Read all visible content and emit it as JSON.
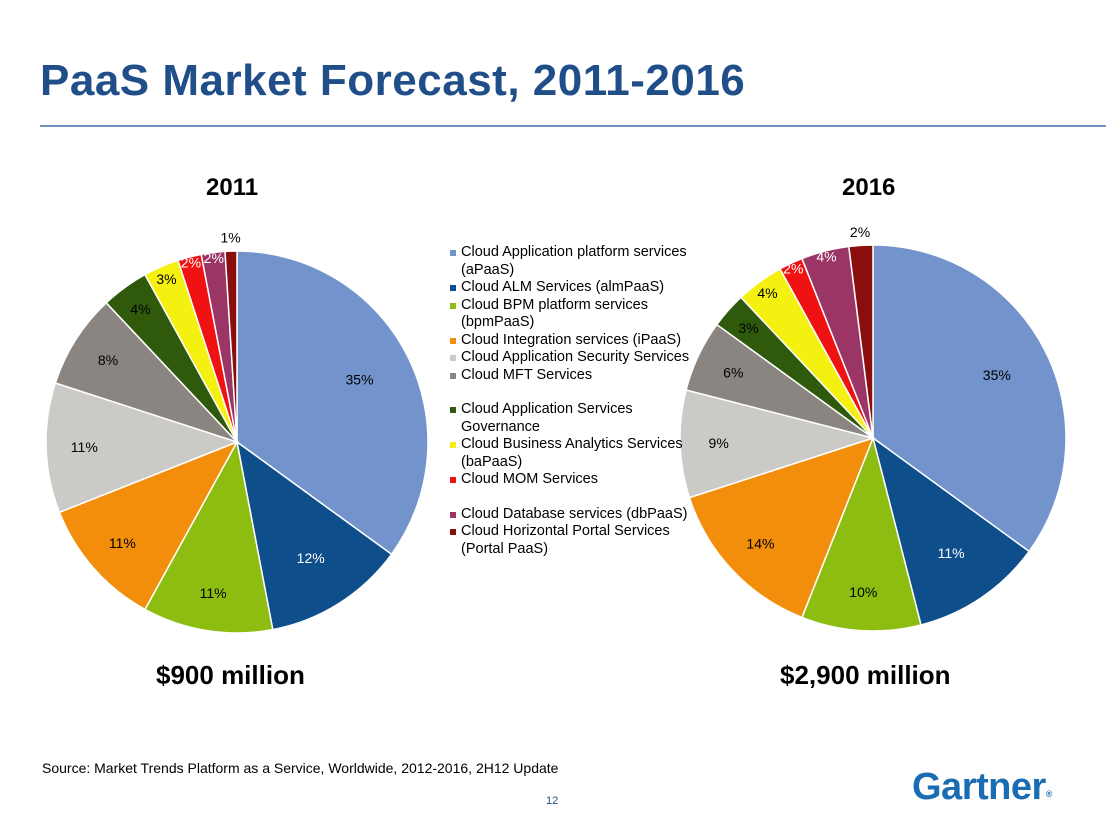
{
  "title": "PaaS Market Forecast, 2011-2016",
  "source": "Source: Market Trends Platform as a Service, Worldwide, 2012-2016, 2H12 Update",
  "page_number": "12",
  "logo": "Gartner",
  "legend": [
    {
      "label": "Cloud Application platform services (aPaaS)",
      "color": "#7293cb"
    },
    {
      "label": "Cloud ALM Services (almPaaS)",
      "color": "#0e4e8b"
    },
    {
      "label": "Cloud BPM platform services (bpmPaaS)",
      "color": "#8cbd10"
    },
    {
      "label": "Cloud Integration services (iPaaS)",
      "color": "#f28e0c"
    },
    {
      "label": "Cloud Application Security Services",
      "color": "#cccac7"
    },
    {
      "label": "Cloud MFT Services",
      "color": "#8a8580"
    },
    {
      "label": "Cloud Application Services Governance",
      "color": "#2f5a0c"
    },
    {
      "label": "Cloud Business Analytics Services (baPaaS)",
      "color": "#f4f010"
    },
    {
      "label": "Cloud MOM Services",
      "color": "#f01212"
    },
    {
      "label": "Cloud Database services (dbPaaS)",
      "color": "#9b3565"
    },
    {
      "label": "Cloud Horizontal Portal Services (Portal PaaS)",
      "color": "#8a0e0e"
    }
  ],
  "chart_data": [
    {
      "type": "pie",
      "title": "2011",
      "total_label": "$900 million",
      "categories": [
        "Cloud Application platform services (aPaaS)",
        "Cloud ALM Services (almPaaS)",
        "Cloud BPM platform services (bpmPaaS)",
        "Cloud Integration services (iPaaS)",
        "Cloud Application Security Services",
        "Cloud MFT Services",
        "Cloud Application Services Governance",
        "Cloud Business Analytics Services (baPaaS)",
        "Cloud MOM Services",
        "Cloud Database services (dbPaaS)",
        "Cloud Horizontal Portal Services (Portal PaaS)"
      ],
      "values": [
        35,
        12,
        11,
        11,
        11,
        8,
        4,
        3,
        2,
        2,
        1
      ],
      "labels": [
        "35%",
        "12%",
        "11%",
        "11%",
        "11%",
        "8%",
        "4%",
        "3%",
        "2%",
        "2%",
        "1%"
      ]
    },
    {
      "type": "pie",
      "title": "2016",
      "total_label": "$2,900 million",
      "categories": [
        "Cloud Application platform services (aPaaS)",
        "Cloud ALM Services (almPaaS)",
        "Cloud BPM platform services (bpmPaaS)",
        "Cloud Integration services (iPaaS)",
        "Cloud Application Security Services",
        "Cloud MFT Services",
        "Cloud Application Services Governance",
        "Cloud Business Analytics Services (baPaaS)",
        "Cloud MOM Services",
        "Cloud Database services (dbPaaS)",
        "Cloud Horizontal Portal Services (Portal PaaS)"
      ],
      "values": [
        35,
        11,
        10,
        14,
        9,
        6,
        3,
        4,
        2,
        4,
        2
      ],
      "labels": [
        "35%",
        "11%",
        "10%",
        "14%",
        "9%",
        "6%",
        "3%",
        "4%",
        "2%",
        "4%",
        "2%"
      ]
    }
  ]
}
